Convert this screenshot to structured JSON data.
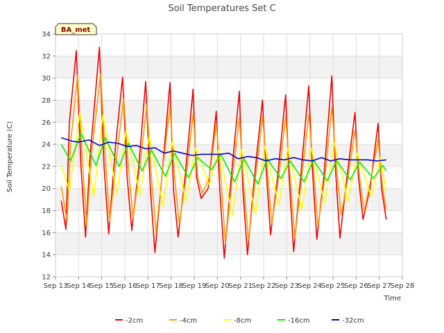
{
  "chart_data": {
    "type": "line",
    "title": "Soil Temperatures Set C",
    "xlabel": "Time",
    "ylabel": "Soil Temperature (C)",
    "badge": "BA_met",
    "xlim": [
      13,
      28
    ],
    "ylim": [
      12,
      34
    ],
    "x_ticks": [
      {
        "value": 13,
        "label": "Sep 13"
      },
      {
        "value": 14,
        "label": "Sep 14"
      },
      {
        "value": 15,
        "label": "Sep 15"
      },
      {
        "value": 16,
        "label": "Sep 16"
      },
      {
        "value": 17,
        "label": "Sep 17"
      },
      {
        "value": 18,
        "label": "Sep 18"
      },
      {
        "value": 19,
        "label": "Sep 19"
      },
      {
        "value": 20,
        "label": "Sep 20"
      },
      {
        "value": 21,
        "label": "Sep 21"
      },
      {
        "value": 22,
        "label": "Sep 22"
      },
      {
        "value": 23,
        "label": "Sep 23"
      },
      {
        "value": 24,
        "label": "Sep 24"
      },
      {
        "value": 25,
        "label": "Sep 25"
      },
      {
        "value": 26,
        "label": "Sep 26"
      },
      {
        "value": 27,
        "label": "Sep 27"
      },
      {
        "value": 28,
        "label": "Sep 28"
      }
    ],
    "y_ticks": [
      12,
      14,
      16,
      18,
      20,
      22,
      24,
      26,
      28,
      30,
      32,
      34
    ],
    "grid": true,
    "legend_position": "bottom-center",
    "series": [
      {
        "name": "-2cm",
        "color": "#ee0000",
        "x": [
          13.25,
          13.45,
          13.6,
          13.9,
          14.1,
          14.3,
          14.5,
          14.9,
          15.1,
          15.3,
          15.6,
          15.9,
          16.1,
          16.3,
          16.6,
          16.9,
          17.1,
          17.3,
          17.6,
          17.95,
          18.1,
          18.3,
          18.6,
          18.95,
          19.1,
          19.3,
          19.6,
          19.95,
          20.1,
          20.3,
          20.6,
          20.95,
          21.1,
          21.3,
          21.6,
          21.95,
          22.1,
          22.3,
          22.6,
          22.95,
          23.1,
          23.3,
          23.6,
          23.95,
          24.1,
          24.3,
          24.6,
          24.95,
          25.1,
          25.3,
          25.6,
          25.95,
          26.1,
          26.3,
          26.6,
          26.95,
          27.1,
          27.3
        ],
        "y": [
          18.9,
          16.3,
          26.0,
          32.5,
          22.0,
          15.6,
          23.0,
          32.8,
          22.0,
          15.9,
          24.0,
          30.1,
          21.0,
          16.2,
          22.0,
          29.7,
          20.0,
          14.2,
          21.0,
          29.6,
          20.0,
          15.6,
          21.0,
          29.0,
          21.0,
          19.1,
          20.0,
          27.0,
          20.0,
          13.7,
          21.0,
          28.8,
          20.0,
          14.0,
          21.0,
          28.0,
          22.0,
          15.8,
          21.0,
          28.5,
          21.0,
          14.3,
          21.0,
          29.3,
          22.0,
          15.4,
          21.0,
          30.2,
          22.0,
          15.5,
          21.0,
          26.9,
          21.0,
          17.2,
          20.0,
          25.9,
          20.0,
          17.2
        ]
      },
      {
        "name": "-4cm",
        "color": "#ff9900",
        "x": [
          13.25,
          13.5,
          13.65,
          13.95,
          14.15,
          14.35,
          14.55,
          14.95,
          15.15,
          15.35,
          15.65,
          15.95,
          16.15,
          16.35,
          16.65,
          16.95,
          17.15,
          17.35,
          17.65,
          17.95,
          18.15,
          18.35,
          18.65,
          18.95,
          19.15,
          19.35,
          19.65,
          19.95,
          20.15,
          20.35,
          20.65,
          20.95,
          21.15,
          21.35,
          21.65,
          21.95,
          22.15,
          22.35,
          22.65,
          22.95,
          23.15,
          23.35,
          23.65,
          23.95,
          24.15,
          24.35,
          24.65,
          24.95,
          25.15,
          25.35,
          25.65,
          25.95,
          26.15,
          26.35,
          26.65,
          26.95,
          27.15,
          27.3
        ],
        "y": [
          20.2,
          17.0,
          24.0,
          30.3,
          23.0,
          16.6,
          23.0,
          30.4,
          23.0,
          17.0,
          23.0,
          28.1,
          22.0,
          17.3,
          22.0,
          27.6,
          21.0,
          16.0,
          22.0,
          27.4,
          21.0,
          16.8,
          21.0,
          26.8,
          21.0,
          19.6,
          21.0,
          25.8,
          21.0,
          15.0,
          21.0,
          26.4,
          20.0,
          15.3,
          21.0,
          26.5,
          22.0,
          16.8,
          21.0,
          26.5,
          21.0,
          15.5,
          21.0,
          26.7,
          22.0,
          16.6,
          21.0,
          27.4,
          22.0,
          17.6,
          21.0,
          25.3,
          21.0,
          17.9,
          21.0,
          24.4,
          20.0,
          18.1
        ]
      },
      {
        "name": "-8cm",
        "color": "#ffff00",
        "x": [
          13.25,
          13.6,
          14.05,
          14.65,
          15.05,
          15.65,
          16.05,
          16.65,
          17.05,
          17.65,
          18.05,
          18.65,
          19.05,
          19.65,
          20.05,
          20.65,
          21.05,
          21.65,
          22.05,
          22.65,
          23.05,
          23.65,
          24.05,
          24.65,
          25.05,
          25.65,
          26.05,
          26.65,
          27.05,
          27.3
        ],
        "y": [
          22.1,
          19.8,
          26.9,
          19.3,
          26.7,
          19.5,
          25.3,
          19.4,
          24.8,
          18.4,
          24.3,
          18.8,
          23.7,
          20.3,
          23.5,
          17.6,
          23.6,
          17.7,
          23.9,
          18.5,
          23.7,
          18.1,
          23.7,
          18.6,
          24.2,
          18.8,
          23.2,
          19.3,
          22.8,
          19.7
        ]
      },
      {
        "name": "-16cm",
        "color": "#00ee00",
        "x": [
          13.25,
          13.65,
          14.1,
          14.75,
          15.15,
          15.75,
          16.15,
          16.75,
          17.15,
          17.75,
          18.15,
          18.75,
          19.15,
          19.75,
          20.15,
          20.75,
          21.15,
          21.75,
          22.15,
          22.75,
          23.15,
          23.75,
          24.15,
          24.75,
          25.15,
          25.75,
          26.15,
          26.75,
          27.15,
          27.3
        ],
        "y": [
          24.0,
          22.5,
          25.0,
          22.1,
          24.6,
          22.0,
          24.1,
          21.6,
          23.5,
          21.1,
          23.2,
          21.0,
          22.8,
          21.7,
          23.1,
          20.6,
          22.7,
          20.4,
          22.7,
          20.9,
          22.5,
          20.6,
          22.6,
          20.7,
          22.5,
          20.8,
          22.4,
          20.9,
          22.1,
          21.6
        ]
      },
      {
        "name": "-32cm",
        "color": "#0000cc",
        "x": [
          13.25,
          13.7,
          14.0,
          14.45,
          14.9,
          15.3,
          15.7,
          16.1,
          16.5,
          16.9,
          17.3,
          17.7,
          18.1,
          18.5,
          18.9,
          19.3,
          19.7,
          20.1,
          20.5,
          20.9,
          21.3,
          21.7,
          22.1,
          22.5,
          22.9,
          23.3,
          23.7,
          24.1,
          24.5,
          24.9,
          25.3,
          25.7,
          26.1,
          26.5,
          26.9,
          27.3
        ],
        "y": [
          24.6,
          24.3,
          24.2,
          24.4,
          23.9,
          24.2,
          24.1,
          23.8,
          23.9,
          23.6,
          23.7,
          23.2,
          23.4,
          23.2,
          23.0,
          23.1,
          23.1,
          23.1,
          23.2,
          22.7,
          22.9,
          22.8,
          22.5,
          22.7,
          22.6,
          22.8,
          22.6,
          22.5,
          22.8,
          22.5,
          22.7,
          22.6,
          22.6,
          22.6,
          22.5,
          22.6
        ]
      }
    ]
  }
}
